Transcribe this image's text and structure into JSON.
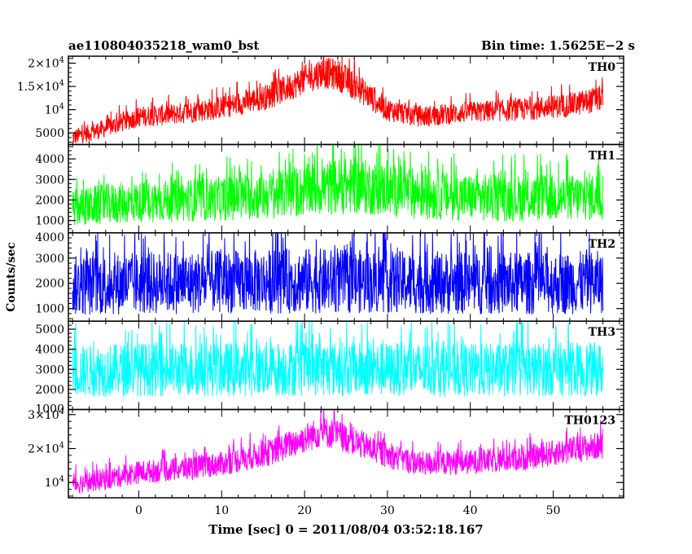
{
  "header": {
    "left": "ae110804035218_wam0_bst",
    "right": "Bin time: 1.5625E−2 s"
  },
  "chart_data": {
    "type": "line",
    "xlabel": "Time [sec] 0 = 2011/08/04 03:52:18.167",
    "ylabel": "Counts/sec",
    "xlim": [
      -8.5,
      58.5
    ],
    "xticks": [
      0,
      10,
      20,
      30,
      40,
      50
    ],
    "xtick_labels": [
      "0",
      "10",
      "20",
      "30",
      "40",
      "50"
    ],
    "panels": [
      {
        "name": "TH0",
        "color": "#ff0000",
        "ylim": [
          2500,
          21500
        ],
        "yticks": [
          5000,
          10000,
          15000,
          20000
        ],
        "ytick_labels": [
          "5000",
          "10^4",
          "1.5×10^4",
          "2×10^4"
        ],
        "x": [
          -8,
          -4,
          0,
          4,
          10,
          16,
          20,
          22,
          24,
          27,
          30,
          34,
          40,
          46,
          52,
          56
        ],
        "y": [
          4000,
          6000,
          8500,
          9000,
          10500,
          13000,
          16500,
          18000,
          17500,
          14000,
          10000,
          8500,
          9500,
          10000,
          11000,
          12500
        ],
        "spread": [
          1800,
          2000,
          2200,
          2300,
          2500,
          2800,
          3200,
          3400,
          3400,
          3000,
          2500,
          2300,
          2300,
          2400,
          2600,
          2800
        ]
      },
      {
        "name": "TH1",
        "color": "#00ff00",
        "ylim": [
          400,
          4700
        ],
        "yticks": [
          1000,
          2000,
          3000,
          4000
        ],
        "ytick_labels": [
          "1000",
          "2000",
          "3000",
          "4000"
        ],
        "x": [
          -8,
          -4,
          0,
          6,
          12,
          18,
          22,
          26,
          30,
          36,
          42,
          48,
          52,
          56
        ],
        "y": [
          1600,
          1800,
          1900,
          2000,
          2100,
          2300,
          2600,
          2700,
          2500,
          2200,
          2100,
          2100,
          2100,
          2200
        ],
        "spread": [
          900,
          1000,
          1000,
          1050,
          1100,
          1200,
          1350,
          1400,
          1300,
          1200,
          1150,
          1150,
          1150,
          1200
        ]
      },
      {
        "name": "TH2",
        "color": "#0000ff",
        "ylim": [
          500,
          4000
        ],
        "yticks": [
          1000,
          2000,
          3000,
          4000
        ],
        "ytick_labels": [
          "1000",
          "2000",
          "3000",
          "4000"
        ],
        "x": [
          -8,
          0,
          10,
          20,
          30,
          40,
          50,
          56
        ],
        "y": [
          1900,
          2000,
          2050,
          2100,
          2050,
          2000,
          2000,
          2050
        ],
        "spread": [
          1200,
          1250,
          1250,
          1300,
          1250,
          1250,
          1250,
          1250
        ]
      },
      {
        "name": "TH3",
        "color": "#00ffff",
        "ylim": [
          1000,
          5400
        ],
        "yticks": [
          1000,
          2000,
          3000,
          4000,
          5000
        ],
        "ytick_labels": [
          "1000",
          "2000",
          "3000",
          "4000",
          "5000"
        ],
        "x": [
          -8,
          0,
          10,
          20,
          30,
          40,
          50,
          56
        ],
        "y": [
          2900,
          3000,
          3000,
          3050,
          3000,
          2950,
          3000,
          3000
        ],
        "spread": [
          1300,
          1350,
          1350,
          1400,
          1350,
          1350,
          1350,
          1350
        ]
      },
      {
        "name": "TH0123",
        "color": "#ff00ff",
        "ylim": [
          5500,
          31500
        ],
        "yticks": [
          10000,
          20000,
          30000
        ],
        "ytick_labels": [
          "10^4",
          "2×10^4",
          "3×10^4"
        ],
        "x": [
          -8,
          -4,
          0,
          5,
          10,
          16,
          20,
          22,
          24,
          27,
          30,
          34,
          40,
          46,
          52,
          56
        ],
        "y": [
          9500,
          11000,
          13000,
          14000,
          15500,
          19000,
          23000,
          25000,
          24000,
          21000,
          18000,
          15500,
          16000,
          17000,
          19500,
          21000
        ],
        "spread": [
          3000,
          3200,
          3400,
          3500,
          3600,
          4000,
          4400,
          4600,
          4500,
          4200,
          3800,
          3600,
          3600,
          3700,
          3900,
          4100
        ]
      }
    ]
  }
}
